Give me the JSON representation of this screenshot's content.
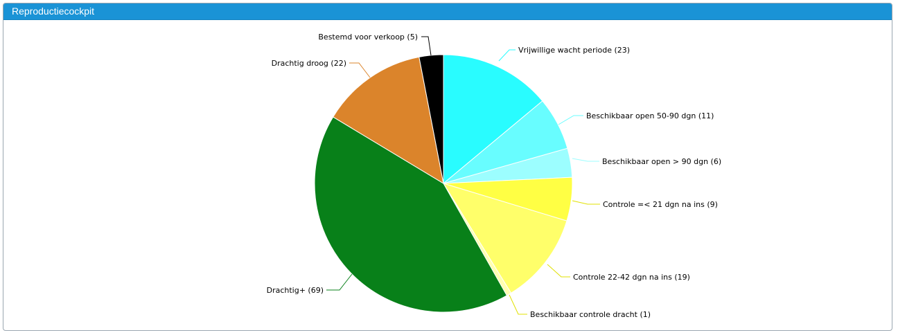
{
  "panel": {
    "title": "Reproductiecockpit"
  },
  "chart_data": {
    "type": "pie",
    "title": "Reproductiecockpit",
    "slices": [
      {
        "label": "Vrijwillige wacht periode (23)",
        "name": "Vrijwillige wacht periode",
        "value": 23,
        "color": "#29fcff"
      },
      {
        "label": "Beschikbaar open 50-90 dgn (11)",
        "name": "Beschikbaar open 50-90 dgn",
        "value": 11,
        "color": "#68fdff"
      },
      {
        "label": "Beschikbaar open > 90 dgn (6)",
        "name": "Beschikbaar open > 90 dgn",
        "value": 6,
        "color": "#9cfeff"
      },
      {
        "label": "Controle =< 21 dgn na ins (9)",
        "name": "Controle =< 21 dgn na ins",
        "value": 9,
        "color": "#ffff44"
      },
      {
        "label": "Controle 22-42 dgn na ins (19)",
        "name": "Controle 22-42 dgn na ins",
        "value": 19,
        "color": "#ffff6a"
      },
      {
        "label": "Beschikbaar controle dracht (1)",
        "name": "Beschikbaar controle dracht",
        "value": 1,
        "color": "#ffffb0"
      },
      {
        "label": "Drachtig+ (69)",
        "name": "Drachtig+",
        "value": 69,
        "color": "#088019"
      },
      {
        "label": "Drachtig droog (22)",
        "name": "Drachtig droog",
        "value": 22,
        "color": "#db842b"
      },
      {
        "label": "Bestemd voor verkoop (5)",
        "name": "Bestemd voor verkoop",
        "value": 5,
        "color": "#000000"
      }
    ],
    "leader_colors": [
      "#29fcff",
      "#68fdff",
      "#9cfeff",
      "#e0e000",
      "#e0e000",
      "#e0e000",
      "#088019",
      "#db842b",
      "#000000"
    ]
  }
}
